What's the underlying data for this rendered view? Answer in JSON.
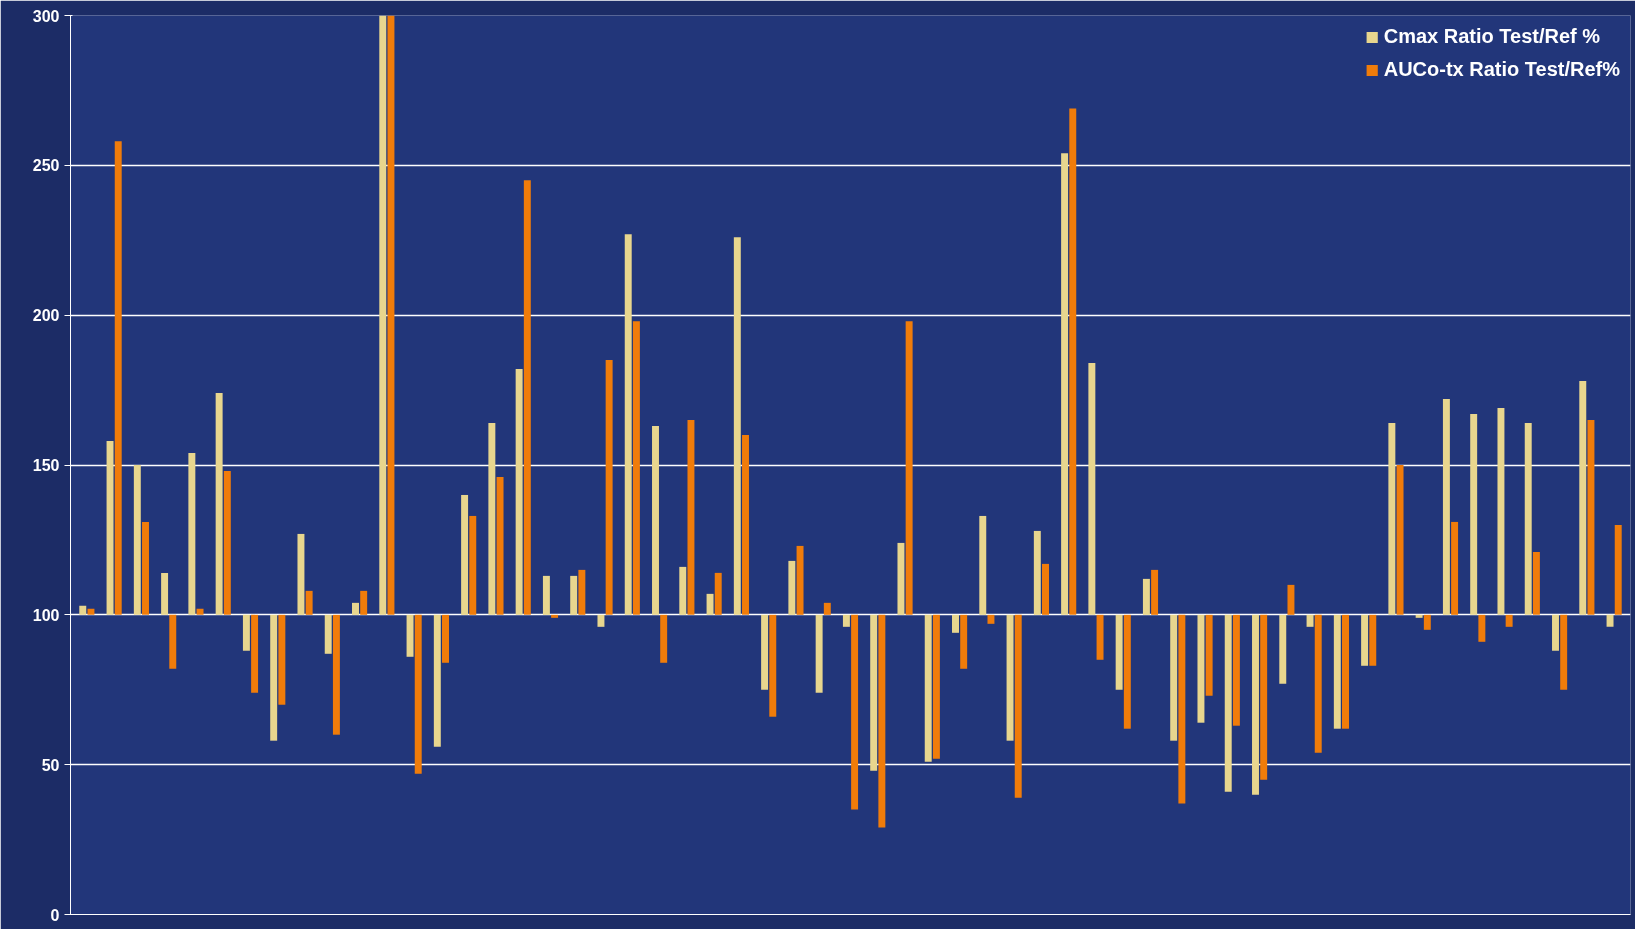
{
  "chart_data": {
    "type": "bar",
    "categories": [
      null,
      null,
      null,
      null,
      null,
      null,
      null,
      null,
      null,
      null,
      null,
      null,
      null,
      null,
      null,
      null,
      null,
      null,
      null,
      null,
      null,
      null,
      null,
      null,
      null,
      null,
      null,
      null,
      null,
      null,
      null,
      null,
      null,
      null,
      null,
      null,
      null,
      null,
      null,
      null,
      null,
      null,
      null,
      null,
      null,
      null,
      null,
      null,
      null,
      null,
      null,
      null,
      null,
      null,
      null,
      null,
      null
    ],
    "series": [
      {
        "name": "Cmax Ratio Test/Ref %",
        "color": "#e8d68e",
        "base": [
          100,
          100,
          100,
          100,
          100,
          100,
          100,
          100,
          100,
          100,
          100,
          100,
          100,
          100,
          100,
          100,
          100,
          100,
          100,
          100,
          100,
          100,
          100,
          100,
          100,
          100,
          100,
          100,
          100,
          100,
          100,
          100,
          100,
          100,
          100,
          100,
          100,
          100,
          100,
          100,
          100,
          100,
          100,
          100,
          100,
          100,
          100,
          100,
          100,
          100,
          100,
          100,
          100,
          100,
          100,
          100,
          100
        ],
        "values": [
          3,
          58,
          50,
          14,
          54,
          74,
          -12,
          -42,
          27,
          -13,
          4,
          200,
          -14,
          -44,
          40,
          64,
          82,
          13,
          13,
          -4,
          127,
          63,
          16,
          7,
          126,
          -25,
          18,
          -26,
          -4,
          -52,
          24,
          -49,
          -6,
          33,
          -42,
          28,
          154,
          84,
          -25,
          12,
          -42,
          -36,
          -59,
          -60,
          -23,
          -4,
          -38,
          -17,
          64,
          -1,
          72,
          67,
          69,
          64,
          -12,
          78,
          -4
        ]
      },
      {
        "name": "AUCo-tx Ratio Test/Ref%",
        "color": "#f07c0a",
        "base": [
          100,
          100,
          100,
          100,
          100,
          100,
          100,
          100,
          100,
          100,
          100,
          100,
          100,
          100,
          100,
          100,
          100,
          100,
          100,
          100,
          100,
          100,
          100,
          100,
          100,
          100,
          100,
          100,
          100,
          100,
          100,
          100,
          100,
          100,
          100,
          100,
          100,
          100,
          100,
          100,
          100,
          100,
          100,
          100,
          100,
          100,
          100,
          100,
          100,
          100,
          100,
          100,
          100,
          100,
          100,
          100,
          100
        ],
        "values": [
          2,
          158,
          31,
          -18,
          2,
          48,
          -26,
          -30,
          8,
          -40,
          8,
          200,
          -53,
          -16,
          33,
          46,
          145,
          -1,
          15,
          85,
          98,
          -16,
          65,
          14,
          60,
          -34,
          23,
          4,
          -65,
          -71,
          98,
          -48,
          -18,
          -3,
          -61,
          17,
          169,
          -15,
          -38,
          15,
          -63,
          -27,
          -37,
          -55,
          10,
          -46,
          -38,
          -17,
          50,
          -5,
          31,
          -9,
          -4,
          21,
          -25,
          65,
          30
        ]
      }
    ],
    "ylim": [
      0,
      300
    ],
    "yticks": [
      0,
      50,
      100,
      150,
      200,
      250,
      300
    ],
    "grid": "y",
    "legend": "top right",
    "tick_labels": "y"
  }
}
